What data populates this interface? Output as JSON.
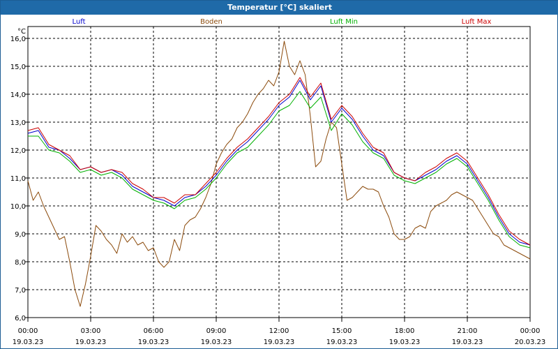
{
  "window": {
    "title": "Temperatur [°C] skaliert"
  },
  "chart_data": {
    "type": "line",
    "title": "Temperatur [°C] skaliert",
    "ylabel": "°C",
    "ylim": [
      6.0,
      16.0
    ],
    "y_ticks": [
      {
        "value": 6.0,
        "label": "6,0"
      },
      {
        "value": 7.0,
        "label": "7,0"
      },
      {
        "value": 8.0,
        "label": "8,0"
      },
      {
        "value": 9.0,
        "label": "9,0"
      },
      {
        "value": 10.0,
        "label": "10,0"
      },
      {
        "value": 11.0,
        "label": "11,0"
      },
      {
        "value": 12.0,
        "label": "12,0"
      },
      {
        "value": 13.0,
        "label": "13,0"
      },
      {
        "value": 14.0,
        "label": "14,0"
      },
      {
        "value": 15.0,
        "label": "15,0"
      },
      {
        "value": 16.0,
        "label": "16,0"
      }
    ],
    "xlim": [
      0,
      24
    ],
    "x_ticks": [
      {
        "hour": 0,
        "time": "00:00",
        "date": "19.03.23"
      },
      {
        "hour": 3,
        "time": "03:00",
        "date": "19.03.23"
      },
      {
        "hour": 6,
        "time": "06:00",
        "date": "19.03.23"
      },
      {
        "hour": 9,
        "time": "09:00",
        "date": "19.03.23"
      },
      {
        "hour": 12,
        "time": "12:00",
        "date": "19.03.23"
      },
      {
        "hour": 15,
        "time": "15:00",
        "date": "19.03.23"
      },
      {
        "hour": 18,
        "time": "18:00",
        "date": "19.03.23"
      },
      {
        "hour": 21,
        "time": "21:00",
        "date": "19.03.23"
      },
      {
        "hour": 24,
        "time": "00:00",
        "date": "20.03.23"
      }
    ],
    "grid": true,
    "series": [
      {
        "name": "Luft",
        "color": "#0000cc",
        "x": [
          0,
          0.5,
          1,
          1.5,
          2,
          2.5,
          3,
          3.5,
          4,
          4.5,
          5,
          5.5,
          6,
          6.5,
          7,
          7.5,
          8,
          8.5,
          9,
          9.5,
          10,
          10.5,
          11,
          11.5,
          12,
          12.5,
          13,
          13.5,
          14,
          14.5,
          15,
          15.5,
          16,
          16.5,
          17,
          17.5,
          18,
          18.5,
          19,
          19.5,
          20,
          20.5,
          21,
          21.5,
          22,
          22.5,
          23,
          23.5,
          24
        ],
        "values": [
          12.6,
          12.7,
          12.1,
          12.0,
          11.7,
          11.3,
          11.4,
          11.2,
          11.3,
          11.1,
          10.7,
          10.5,
          10.3,
          10.2,
          10.0,
          10.3,
          10.4,
          10.7,
          11.1,
          11.6,
          12.0,
          12.3,
          12.7,
          13.1,
          13.6,
          13.9,
          14.5,
          13.8,
          14.3,
          13.0,
          13.5,
          13.1,
          12.5,
          12.0,
          11.8,
          11.2,
          11.0,
          10.9,
          11.1,
          11.3,
          11.6,
          11.8,
          11.5,
          10.9,
          10.3,
          9.6,
          9.0,
          8.7,
          8.6
        ]
      },
      {
        "name": "Boden",
        "color": "#8b4a0b",
        "x": [
          0,
          0.25,
          0.5,
          0.75,
          1,
          1.25,
          1.5,
          1.75,
          2,
          2.25,
          2.5,
          2.75,
          3,
          3.25,
          3.5,
          3.75,
          4,
          4.25,
          4.5,
          4.75,
          5,
          5.25,
          5.5,
          5.75,
          6,
          6.25,
          6.5,
          6.75,
          7,
          7.25,
          7.5,
          7.75,
          8,
          8.25,
          8.5,
          8.75,
          9,
          9.25,
          9.5,
          9.75,
          10,
          10.25,
          10.5,
          10.75,
          11,
          11.25,
          11.5,
          11.75,
          12,
          12.25,
          12.5,
          12.75,
          13,
          13.25,
          13.5,
          13.75,
          14,
          14.25,
          14.5,
          14.75,
          15,
          15.25,
          15.5,
          15.75,
          16,
          16.25,
          16.5,
          16.75,
          17,
          17.25,
          17.5,
          17.75,
          18,
          18.25,
          18.5,
          18.75,
          19,
          19.25,
          19.5,
          19.75,
          20,
          20.25,
          20.5,
          20.75,
          21,
          21.25,
          21.5,
          21.75,
          22,
          22.25,
          22.5,
          22.75,
          23,
          23.25,
          23.5,
          23.75,
          24
        ],
        "values": [
          10.9,
          10.2,
          10.5,
          10.0,
          9.6,
          9.2,
          8.8,
          8.9,
          8.0,
          7.0,
          6.4,
          7.2,
          8.2,
          9.3,
          9.1,
          8.8,
          8.6,
          8.3,
          9.0,
          8.7,
          8.9,
          8.6,
          8.7,
          8.4,
          8.5,
          8.0,
          7.8,
          8.0,
          8.8,
          8.4,
          9.3,
          9.5,
          9.6,
          9.9,
          10.3,
          10.8,
          11.5,
          11.9,
          12.2,
          12.4,
          12.8,
          13.0,
          13.3,
          13.7,
          14.0,
          14.2,
          14.5,
          14.3,
          14.8,
          15.9,
          15.0,
          14.7,
          15.2,
          14.7,
          13.2,
          11.4,
          11.6,
          12.4,
          13.0,
          12.8,
          11.5,
          10.2,
          10.3,
          10.5,
          10.7,
          10.6,
          10.6,
          10.5,
          10.0,
          9.6,
          9.0,
          8.8,
          8.8,
          8.9,
          9.2,
          9.3,
          9.2,
          9.8,
          10.0,
          10.1,
          10.2,
          10.4,
          10.5,
          10.4,
          10.3,
          10.2,
          9.9,
          9.6,
          9.3,
          9.0,
          8.9,
          8.6,
          8.5,
          8.4,
          8.3,
          8.2,
          8.1
        ],
        "note": "Boden series drawn from the estimated points"
      },
      {
        "name": "Luft Min",
        "color": "#00b000",
        "x": [
          0,
          0.5,
          1,
          1.5,
          2,
          2.5,
          3,
          3.5,
          4,
          4.5,
          5,
          5.5,
          6,
          6.5,
          7,
          7.5,
          8,
          8.5,
          9,
          9.5,
          10,
          10.5,
          11,
          11.5,
          12,
          12.5,
          13,
          13.5,
          14,
          14.5,
          15,
          15.5,
          16,
          16.5,
          17,
          17.5,
          18,
          18.5,
          19,
          19.5,
          20,
          20.5,
          21,
          21.5,
          22,
          22.5,
          23,
          23.5,
          24
        ],
        "values": [
          12.5,
          12.5,
          12.0,
          11.9,
          11.6,
          11.2,
          11.3,
          11.1,
          11.2,
          11.0,
          10.6,
          10.4,
          10.2,
          10.1,
          9.9,
          10.2,
          10.3,
          10.6,
          11.0,
          11.5,
          11.9,
          12.1,
          12.5,
          12.9,
          13.4,
          13.6,
          14.1,
          13.5,
          13.9,
          12.7,
          13.3,
          12.9,
          12.3,
          11.9,
          11.7,
          11.1,
          10.9,
          10.8,
          11.0,
          11.2,
          11.5,
          11.7,
          11.4,
          10.8,
          10.2,
          9.5,
          8.9,
          8.6,
          8.5
        ]
      },
      {
        "name": "Luft Max",
        "color": "#cc0000",
        "x": [
          0,
          0.5,
          1,
          1.5,
          2,
          2.5,
          3,
          3.5,
          4,
          4.5,
          5,
          5.5,
          6,
          6.5,
          7,
          7.5,
          8,
          8.5,
          9,
          9.5,
          10,
          10.5,
          11,
          11.5,
          12,
          12.5,
          13,
          13.5,
          14,
          14.5,
          15,
          15.5,
          16,
          16.5,
          17,
          17.5,
          18,
          18.5,
          19,
          19.5,
          20,
          20.5,
          21,
          21.5,
          22,
          22.5,
          23,
          23.5,
          24
        ],
        "values": [
          12.7,
          12.8,
          12.2,
          12.0,
          11.8,
          11.3,
          11.4,
          11.2,
          11.3,
          11.2,
          10.8,
          10.6,
          10.3,
          10.3,
          10.1,
          10.4,
          10.4,
          10.8,
          11.2,
          11.7,
          12.1,
          12.4,
          12.8,
          13.2,
          13.7,
          14.0,
          14.6,
          13.9,
          14.4,
          13.1,
          13.6,
          13.2,
          12.6,
          12.1,
          11.9,
          11.2,
          11.0,
          10.9,
          11.2,
          11.4,
          11.7,
          11.9,
          11.6,
          11.0,
          10.4,
          9.7,
          9.1,
          8.8,
          8.6
        ]
      }
    ]
  }
}
